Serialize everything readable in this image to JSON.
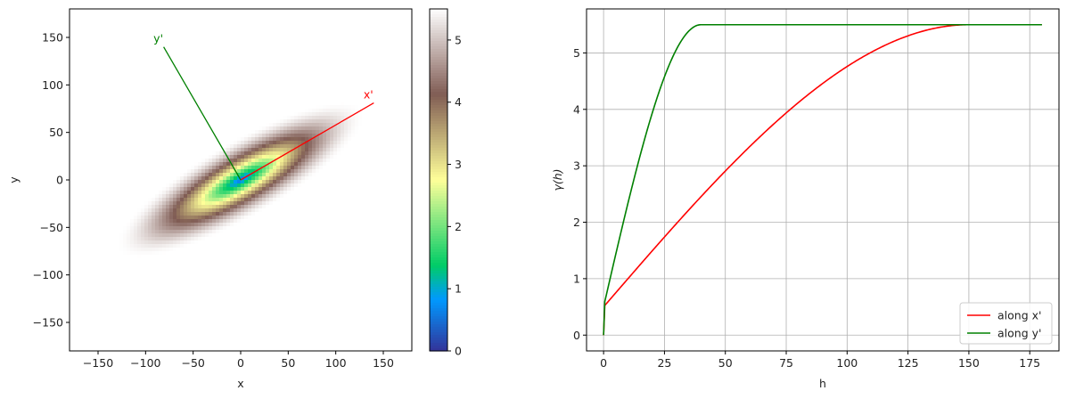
{
  "chart_data": [
    {
      "type": "heatmap",
      "xlabel": "x",
      "ylabel": "y",
      "xlim": [
        -180,
        180
      ],
      "ylim": [
        -180,
        180
      ],
      "xticks": [
        -150,
        -100,
        -50,
        0,
        50,
        100,
        150
      ],
      "yticks": [
        -150,
        -100,
        -50,
        0,
        50,
        100,
        150
      ],
      "tick_labels_x": [
        "−150",
        "−100",
        "−50",
        "0",
        "50",
        "100",
        "150"
      ],
      "tick_labels_y": [
        "−150",
        "−100",
        "−50",
        "0",
        "50",
        "100",
        "150"
      ],
      "ellipse": {
        "center": [
          0,
          0
        ],
        "angle_deg": 30,
        "range_major": 150,
        "range_minor": 40,
        "sill": 5.5,
        "nugget": 0.5
      },
      "colorbar": {
        "min": 0,
        "max": 5.5,
        "ticks": [
          0,
          1,
          2,
          3,
          4,
          5
        ],
        "tick_labels": [
          "0",
          "1",
          "2",
          "3",
          "4",
          "5"
        ],
        "colormap": "terrain"
      },
      "annotations": [
        {
          "label": "x'",
          "from": [
            0,
            0
          ],
          "to": [
            140,
            81
          ],
          "color": "#ff0000"
        },
        {
          "label": "y'",
          "from": [
            0,
            0
          ],
          "to": [
            -81,
            140
          ],
          "color": "#008000"
        }
      ]
    },
    {
      "type": "line",
      "xlabel": "h",
      "ylabel": "γ(h)",
      "xlim": [
        -7,
        187
      ],
      "ylim": [
        -0.28,
        5.78
      ],
      "xticks": [
        0,
        25,
        50,
        75,
        100,
        125,
        150,
        175
      ],
      "yticks": [
        0,
        1,
        2,
        3,
        4,
        5
      ],
      "tick_labels_x": [
        "0",
        "25",
        "50",
        "75",
        "100",
        "125",
        "150",
        "175"
      ],
      "tick_labels_y": [
        "0",
        "1",
        "2",
        "3",
        "4",
        "5"
      ],
      "grid": true,
      "legend_position": "bottom-right",
      "series": [
        {
          "name": "along x'",
          "color": "#ff0000",
          "model": "spherical",
          "nugget": 0.5,
          "sill": 5.5,
          "range": 150,
          "x_max": 180
        },
        {
          "name": "along y'",
          "color": "#008000",
          "model": "spherical",
          "nugget": 0.5,
          "sill": 5.5,
          "range": 40,
          "x_max": 180
        }
      ]
    }
  ]
}
